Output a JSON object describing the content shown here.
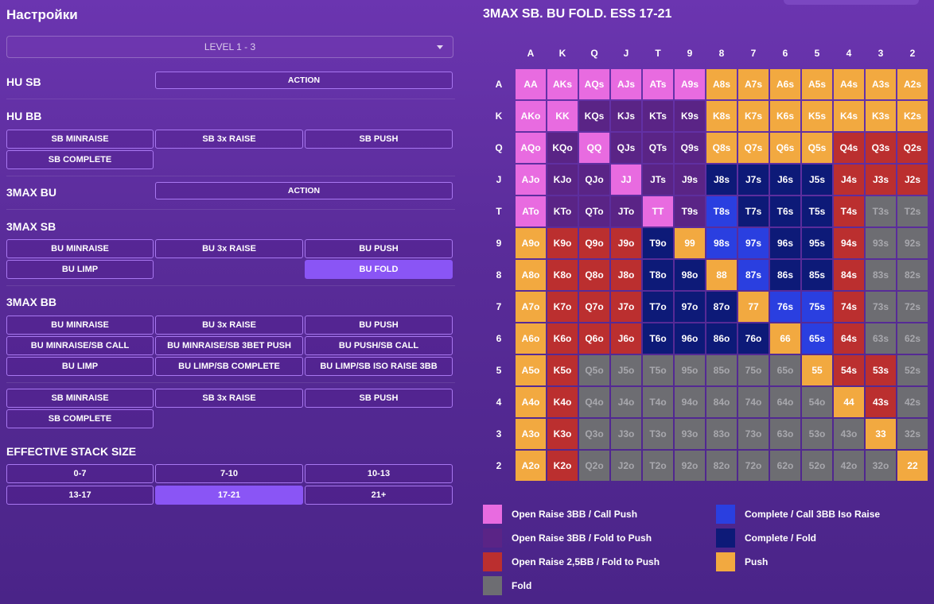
{
  "settings": {
    "title": "Настройки",
    "level": "LEVEL 1 - 3",
    "sections": {
      "hu_sb": {
        "label": "HU SB",
        "action": "ACTION"
      },
      "hu_bb": {
        "label": "HU BB",
        "buttons": [
          "SB MINRAISE",
          "SB 3x RAISE",
          "SB PUSH",
          "SB COMPLETE"
        ]
      },
      "bu3": {
        "label": "3MAX BU",
        "action": "ACTION"
      },
      "sb3": {
        "label": "3MAX SB",
        "buttons": [
          "BU MINRAISE",
          "BU 3x RAISE",
          "BU PUSH",
          "BU LIMP",
          "BU FOLD"
        ],
        "active": "BU FOLD"
      },
      "bb3": {
        "label": "3MAX BB",
        "buttons": [
          "BU MINRAISE",
          "BU 3x RAISE",
          "BU PUSH",
          "BU MINRAISE/SB CALL",
          "BU MINRAISE/SB 3BET PUSH",
          "BU PUSH/SB CALL",
          "BU LIMP",
          "BU LIMP/SB COMPLETE",
          "BU LIMP/SB ISO RAISE 3BB"
        ]
      },
      "bb3b": {
        "buttons": [
          "SB MINRAISE",
          "SB 3x RAISE",
          "SB PUSH",
          "SB COMPLETE"
        ]
      },
      "ess": {
        "label": "EFFECTIVE STACK SIZE",
        "buttons": [
          "0-7",
          "7-10",
          "10-13",
          "13-17",
          "17-21",
          "21+"
        ],
        "active": "17-21"
      }
    }
  },
  "chart": {
    "title": "3MAX SB. BU FOLD. ESS 17-21",
    "ranks": [
      "A",
      "K",
      "Q",
      "J",
      "T",
      "9",
      "8",
      "7",
      "6",
      "5",
      "4",
      "3",
      "2"
    ],
    "colors": {
      "or": "#e86be0",
      "of": "#5a2486",
      "r": "#bb2f2f",
      "f": "#6d6d72",
      "cb": "#2a3fe0",
      "cf": "#0d1a78",
      "p": "#f2a940"
    },
    "grid": [
      [
        "or",
        "or",
        "or",
        "or",
        "or",
        "or",
        "p",
        "p",
        "p",
        "p",
        "p",
        "p",
        "p"
      ],
      [
        "or",
        "or",
        "of",
        "of",
        "of",
        "of",
        "p",
        "p",
        "p",
        "p",
        "p",
        "p",
        "p"
      ],
      [
        "or",
        "of",
        "or",
        "of",
        "of",
        "of",
        "p",
        "p",
        "p",
        "p",
        "r",
        "r",
        "r"
      ],
      [
        "or",
        "of",
        "of",
        "or",
        "of",
        "of",
        "cf",
        "cf",
        "cf",
        "cf",
        "r",
        "r",
        "r"
      ],
      [
        "or",
        "of",
        "of",
        "of",
        "or",
        "of",
        "cb",
        "cf",
        "cf",
        "cf",
        "r",
        "f",
        "f"
      ],
      [
        "p",
        "r",
        "r",
        "r",
        "cf",
        "p",
        "cb",
        "cb",
        "cf",
        "cf",
        "r",
        "f",
        "f"
      ],
      [
        "p",
        "r",
        "r",
        "r",
        "cf",
        "cf",
        "p",
        "cb",
        "cf",
        "cf",
        "r",
        "f",
        "f"
      ],
      [
        "p",
        "r",
        "r",
        "r",
        "cf",
        "cf",
        "cf",
        "p",
        "cb",
        "cb",
        "r",
        "f",
        "f"
      ],
      [
        "p",
        "r",
        "r",
        "r",
        "cf",
        "cf",
        "cf",
        "cf",
        "p",
        "cb",
        "r",
        "f",
        "f"
      ],
      [
        "p",
        "r",
        "f",
        "f",
        "f",
        "f",
        "f",
        "f",
        "f",
        "p",
        "r",
        "r",
        "f"
      ],
      [
        "p",
        "r",
        "f",
        "f",
        "f",
        "f",
        "f",
        "f",
        "f",
        "f",
        "p",
        "r",
        "f"
      ],
      [
        "p",
        "r",
        "f",
        "f",
        "f",
        "f",
        "f",
        "f",
        "f",
        "f",
        "f",
        "p",
        "f"
      ],
      [
        "p",
        "r",
        "f",
        "f",
        "f",
        "f",
        "f",
        "f",
        "f",
        "f",
        "f",
        "f",
        "p"
      ]
    ],
    "legend": [
      {
        "key": "or",
        "label": "Open Raise 3BB / Call Push"
      },
      {
        "key": "of",
        "label": "Open Raise 3BB / Fold to Push"
      },
      {
        "key": "r",
        "label": "Open Raise 2,5BB / Fold to Push"
      },
      {
        "key": "f",
        "label": "Fold"
      },
      {
        "key": "cb",
        "label": "Complete / Call 3BB Iso Raise"
      },
      {
        "key": "cf",
        "label": "Complete / Fold"
      },
      {
        "key": "p",
        "label": "Push"
      }
    ]
  }
}
